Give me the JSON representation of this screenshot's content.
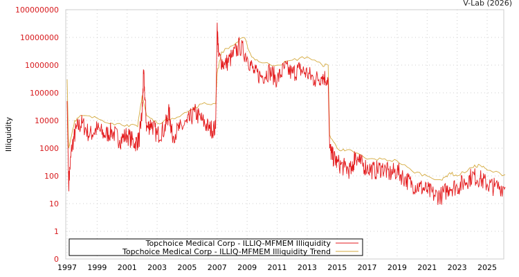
{
  "credit": "V-Lab (2026)",
  "chart_data": {
    "type": "line",
    "title": "",
    "xlabel": "",
    "ylabel": "Illiquidity",
    "yscale": "log",
    "ylim": [
      0,
      100000000
    ],
    "xlim": [
      1997,
      2026.2
    ],
    "y_ticks": [
      "0",
      "1",
      "10",
      "100",
      "1000",
      "10000",
      "100000",
      "1000000",
      "10000000",
      "100000000"
    ],
    "x_ticks": [
      "1997",
      "1999",
      "2001",
      "2003",
      "2005",
      "2007",
      "2009",
      "2011",
      "2013",
      "2015",
      "2017",
      "2019",
      "2021",
      "2023",
      "2025"
    ],
    "grid": true,
    "legend_position": "bottom-left",
    "series": [
      {
        "name": "Topchoice Medical Corp - ILLIQ-MFMEM Illiquidity",
        "color": "#e31a1c",
        "points": [
          [
            1997.0,
            50000
          ],
          [
            1997.1,
            50
          ],
          [
            1997.3,
            1000
          ],
          [
            1997.6,
            5000
          ],
          [
            1998,
            8000
          ],
          [
            1998.5,
            3000
          ],
          [
            1999,
            5000
          ],
          [
            1999.5,
            3000
          ],
          [
            2000,
            4000
          ],
          [
            2000.5,
            2000
          ],
          [
            2001,
            3000
          ],
          [
            2001.5,
            1500
          ],
          [
            2001.8,
            2000
          ],
          [
            2002,
            20000
          ],
          [
            2002.1,
            500000
          ],
          [
            2002.3,
            5000
          ],
          [
            2002.6,
            8000
          ],
          [
            2003,
            3000
          ],
          [
            2003.5,
            5000
          ],
          [
            2003.8,
            20000
          ],
          [
            2004,
            3000
          ],
          [
            2004.5,
            5000
          ],
          [
            2005,
            8000
          ],
          [
            2005.5,
            20000
          ],
          [
            2006,
            10000
          ],
          [
            2006.5,
            5000
          ],
          [
            2006.9,
            5000
          ],
          [
            2007.0,
            30000000
          ],
          [
            2007.1,
            2000000
          ],
          [
            2007.5,
            1000000
          ],
          [
            2008,
            2000000
          ],
          [
            2008.5,
            5000000
          ],
          [
            2009,
            2000000
          ],
          [
            2009.5,
            500000
          ],
          [
            2010,
            400000
          ],
          [
            2010.5,
            600000
          ],
          [
            2011,
            300000
          ],
          [
            2011.5,
            800000
          ],
          [
            2012,
            500000
          ],
          [
            2012.5,
            700000
          ],
          [
            2013,
            500000
          ],
          [
            2013.5,
            300000
          ],
          [
            2014,
            400000
          ],
          [
            2014.4,
            300000
          ],
          [
            2014.5,
            1000
          ],
          [
            2014.7,
            500
          ],
          [
            2015,
            300
          ],
          [
            2015.5,
            200
          ],
          [
            2016,
            150
          ],
          [
            2016.2,
            600
          ],
          [
            2016.5,
            300
          ],
          [
            2017,
            200
          ],
          [
            2017.5,
            150
          ],
          [
            2018,
            200
          ],
          [
            2018.5,
            120
          ],
          [
            2019,
            150
          ],
          [
            2019.5,
            80
          ],
          [
            2020,
            50
          ],
          [
            2020.5,
            40
          ],
          [
            2021,
            30
          ],
          [
            2021.5,
            20
          ],
          [
            2022,
            20
          ],
          [
            2022.5,
            40
          ],
          [
            2023,
            40
          ],
          [
            2023.5,
            60
          ],
          [
            2024,
            100
          ],
          [
            2024.5,
            80
          ],
          [
            2025,
            50
          ],
          [
            2025.5,
            40
          ],
          [
            2026.2,
            40
          ]
        ]
      },
      {
        "name": "Topchoice Medical Corp - ILLIQ-MFMEM Illiquidity Trend",
        "color": "#d4a93c",
        "points": [
          [
            1997,
            300000
          ],
          [
            1997.1,
            1000
          ],
          [
            1997.5,
            10000
          ],
          [
            1998,
            15000
          ],
          [
            1999,
            12000
          ],
          [
            2000,
            8000
          ],
          [
            2001,
            7000
          ],
          [
            2001.7,
            6000
          ],
          [
            2002,
            80000
          ],
          [
            2002.3,
            15000
          ],
          [
            2003,
            8000
          ],
          [
            2004,
            12000
          ],
          [
            2005,
            20000
          ],
          [
            2006,
            40000
          ],
          [
            2006.9,
            40000
          ],
          [
            2007.0,
            500000
          ],
          [
            2007.3,
            3000000
          ],
          [
            2008,
            5000000
          ],
          [
            2008.8,
            10000000
          ],
          [
            2009.3,
            2000000
          ],
          [
            2010,
            1200000
          ],
          [
            2011,
            1000000
          ],
          [
            2012,
            1500000
          ],
          [
            2013,
            2000000
          ],
          [
            2014,
            1000000
          ],
          [
            2014.4,
            1000000
          ],
          [
            2014.5,
            3000
          ],
          [
            2015,
            1000
          ],
          [
            2015.5,
            800
          ],
          [
            2016,
            800
          ],
          [
            2017,
            400
          ],
          [
            2018,
            400
          ],
          [
            2019,
            350
          ],
          [
            2020,
            150
          ],
          [
            2021,
            100
          ],
          [
            2022,
            70
          ],
          [
            2022.5,
            130
          ],
          [
            2023,
            100
          ],
          [
            2024,
            200
          ],
          [
            2024.5,
            250
          ],
          [
            2025,
            160
          ],
          [
            2026.2,
            110
          ]
        ]
      }
    ]
  }
}
